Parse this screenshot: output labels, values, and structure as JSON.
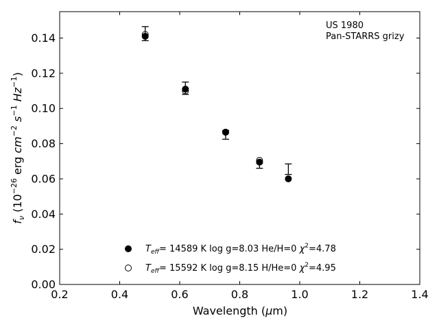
{
  "chart_data": {
    "type": "scatter",
    "xlabel": "Wavelength (μm)",
    "ylabel": "f_ν (10^-26 erg cm^-2 s^-1 Hz^-1)",
    "xlim": [
      0.2,
      1.4
    ],
    "ylim": [
      0.0,
      0.155
    ],
    "x_ticks": [
      0.2,
      0.4,
      0.6,
      0.8,
      1.0,
      1.2,
      1.4
    ],
    "x_tick_labels": [
      "0.2",
      "0.4",
      "0.6",
      "0.8",
      "1.0",
      "1.2",
      "1.4"
    ],
    "y_ticks": [
      0.0,
      0.02,
      0.04,
      0.06,
      0.08,
      0.1,
      0.12,
      0.14
    ],
    "y_tick_labels": [
      "0.00",
      "0.02",
      "0.04",
      "0.06",
      "0.08",
      "0.10",
      "0.12",
      "0.14"
    ],
    "grid": false,
    "annotations": [
      "US 1980",
      "Pan-STARRS grizy"
    ],
    "observed": {
      "x": [
        0.485,
        0.619,
        0.753,
        0.866,
        0.962
      ],
      "y": [
        0.1425,
        0.1115,
        0.085,
        0.0675,
        0.0655
      ],
      "yerr": [
        0.004,
        0.0035,
        0.0025,
        0.0015,
        0.003
      ]
    },
    "series": [
      {
        "name": "T_eff= 14589 K  log g=8.03  He/H=0  χ²=4.78",
        "marker": "filled-circle",
        "x": [
          0.485,
          0.619,
          0.753,
          0.866,
          0.962
        ],
        "y": [
          0.141,
          0.111,
          0.0865,
          0.0695,
          0.06
        ]
      },
      {
        "name": "T_eff= 15592 K  log g=8.15  H/He=0  χ²=4.95",
        "marker": "open-circle",
        "x": [
          0.485,
          0.619,
          0.753,
          0.866
        ],
        "y": [
          0.142,
          0.11,
          0.0865,
          0.0705
        ]
      }
    ],
    "legend_placement": "bottom-center"
  }
}
